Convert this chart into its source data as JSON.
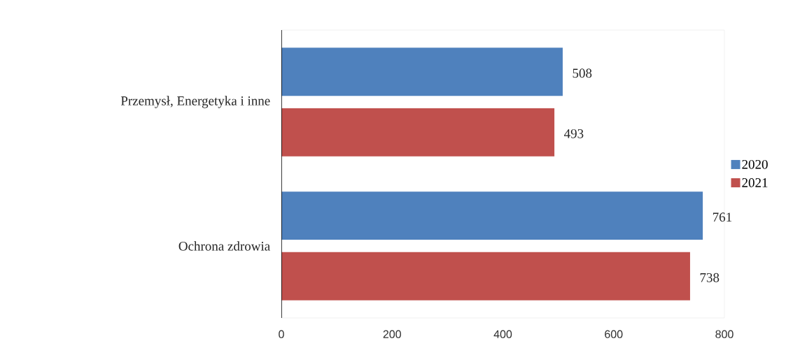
{
  "chart_data": {
    "type": "bar",
    "orientation": "horizontal",
    "categories": [
      "Przemysł, Energetyka i inne",
      "Ochrona zdrowia"
    ],
    "series": [
      {
        "name": "2020",
        "color": "#4f81bd",
        "values": [
          508,
          761
        ]
      },
      {
        "name": "2021",
        "color": "#c0504d",
        "values": [
          493,
          738
        ]
      }
    ],
    "xlim": [
      0,
      800
    ],
    "xticks": [
      0,
      200,
      400,
      600,
      800
    ],
    "data_labels": true,
    "legend": "right",
    "grid": false
  }
}
